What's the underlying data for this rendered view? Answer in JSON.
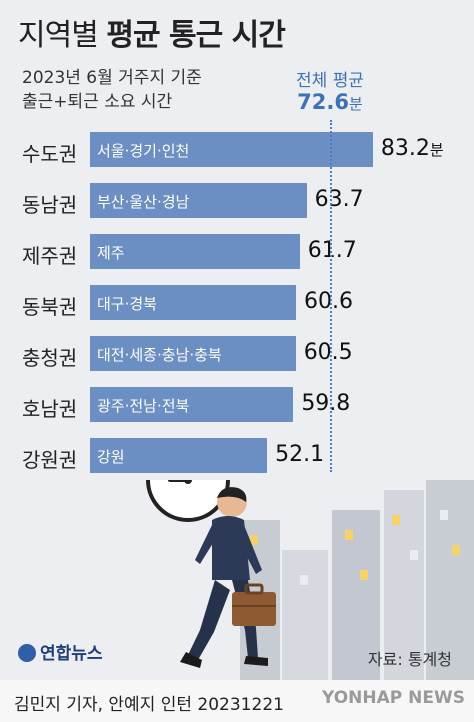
{
  "title_regular": "지역별",
  "title_bold": "평균 통근 시간",
  "subtitle_line1": "2023년 6월 거주지 기준",
  "subtitle_line2": "출근+퇴근 소요 시간",
  "average_label": "전체 평균",
  "average_value": "72.6",
  "average_unit": "분",
  "value_unit": "분",
  "chart_data": {
    "type": "bar",
    "orientation": "horizontal",
    "title": "지역별 평균 통근 시간",
    "subtitle": "2023년 6월 거주지 기준 출근+퇴근 소요 시간",
    "categories": [
      "수도권",
      "동남권",
      "제주권",
      "동북권",
      "충청권",
      "호남권",
      "강원권"
    ],
    "bar_labels": [
      "서울·경기·인천",
      "부산·울산·경남",
      "제주",
      "대구·경북",
      "대전·세종·충남·충북",
      "광주·전남·전북",
      "강원"
    ],
    "values": [
      83.2,
      63.7,
      61.7,
      60.6,
      60.5,
      59.8,
      52.1
    ],
    "value_labels": [
      "83.2",
      "63.7",
      "61.7",
      "60.6",
      "60.5",
      "59.8",
      "52.1"
    ],
    "reference_line": {
      "label": "전체 평균",
      "value": 72.6
    },
    "unit": "분",
    "bar_color": "#6c8fc3",
    "accent_color": "#3d72b7",
    "grid": false
  },
  "logo_text": "연합뉴스",
  "source": "자료: 통계청",
  "credit": "김민지 기자, 안예지 인턴  20231221",
  "watermark": "YONHAP NEWS"
}
